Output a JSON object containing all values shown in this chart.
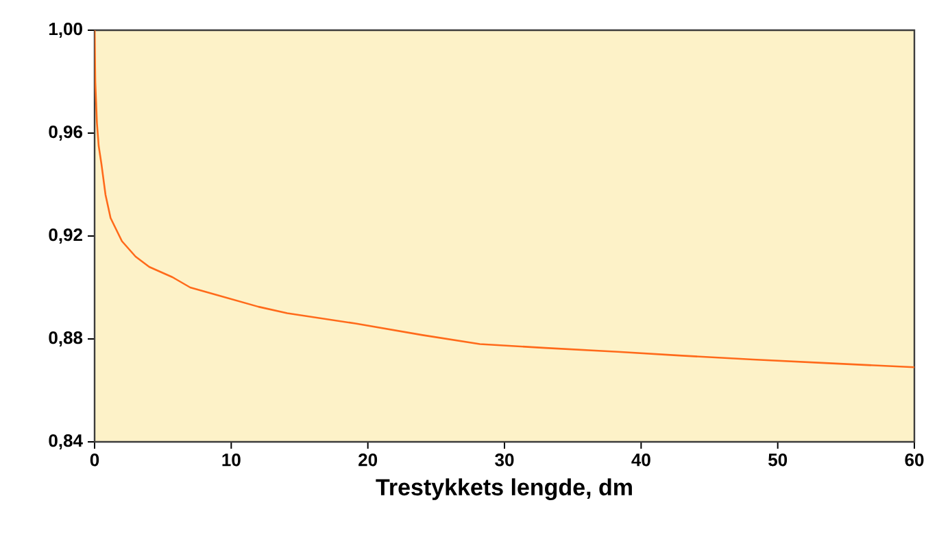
{
  "chart_data": {
    "type": "line",
    "xlabel": "Trestykkets lengde, dm",
    "x": [
      0,
      0.05,
      0.17,
      0.3,
      0.5,
      0.8,
      1.17,
      2.0,
      3.0,
      4.0,
      5.7,
      7.0,
      9.0,
      12.0,
      14.1,
      19.1,
      24.0,
      28.2,
      33.0,
      38.3,
      43.0,
      48.2,
      54.0,
      60
    ],
    "series": [
      {
        "color": "#ff6a1a",
        "values": [
          1.0,
          0.98,
          0.964,
          0.955,
          0.948,
          0.936,
          0.927,
          0.918,
          0.912,
          0.908,
          0.904,
          0.9,
          0.897,
          0.8925,
          0.89,
          0.886,
          0.8815,
          0.878,
          0.8765,
          0.875,
          0.8735,
          0.872,
          0.8705,
          0.869
        ]
      }
    ],
    "xlim": [
      0,
      60
    ],
    "ylim": [
      0.84,
      1.0
    ],
    "xticks": [
      0,
      10,
      20,
      30,
      40,
      50,
      60
    ],
    "yticks": [
      {
        "value": 0.84,
        "label": "0,84"
      },
      {
        "value": 0.88,
        "label": "0,88"
      },
      {
        "value": 0.92,
        "label": "0,92"
      },
      {
        "value": 0.96,
        "label": "0,96"
      },
      {
        "value": 1.0,
        "label": "1,00"
      }
    ],
    "grid": false,
    "marker": "none",
    "line_style": "solid"
  }
}
